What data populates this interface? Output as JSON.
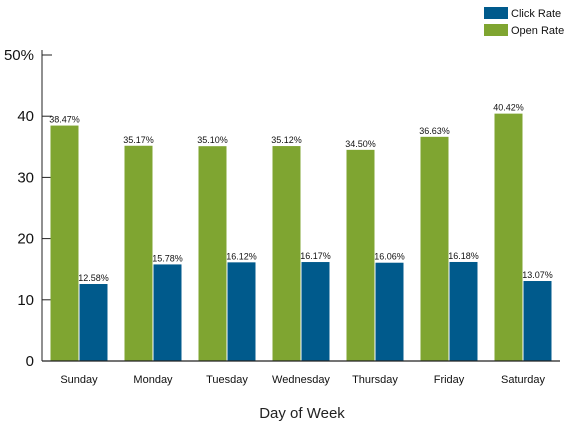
{
  "chart_data": {
    "type": "bar",
    "title": "",
    "xlabel": "Day of Week",
    "ylabel": "",
    "categories": [
      "Sunday",
      "Monday",
      "Tuesday",
      "Wednesday",
      "Thursday",
      "Friday",
      "Saturday"
    ],
    "series": [
      {
        "name": "Open Rate",
        "color": "#7fa531",
        "values": [
          38.47,
          35.17,
          35.1,
          35.12,
          34.5,
          36.63,
          40.42
        ],
        "labels": [
          "38.47%",
          "35.17%",
          "35.10%",
          "35.12%",
          "34.50%",
          "36.63%",
          "40.42%"
        ]
      },
      {
        "name": "Click Rate",
        "color": "#005a8c",
        "values": [
          12.58,
          15.78,
          16.12,
          16.17,
          16.06,
          16.18,
          13.07
        ],
        "labels": [
          "12.58%",
          "15.78%",
          "16.12%",
          "16.17%",
          "16.06%",
          "16.18%",
          "13.07%"
        ]
      }
    ],
    "ylim": [
      0,
      50
    ],
    "yticks": [
      0,
      10,
      20,
      30,
      40,
      50
    ],
    "ytick_labels": [
      "0",
      "10",
      "20",
      "30",
      "40",
      "50%"
    ],
    "legend": {
      "position": "top-right",
      "entries": [
        "Click Rate",
        "Open Rate"
      ]
    },
    "grid": false
  }
}
